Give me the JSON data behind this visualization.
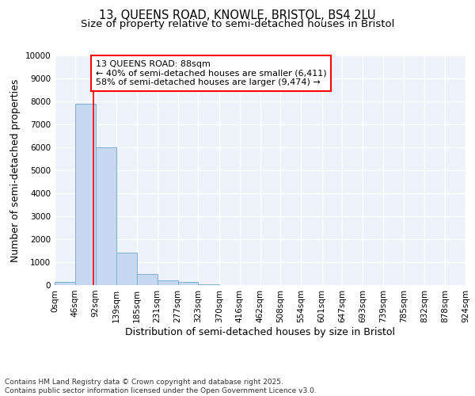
{
  "title_line1": "13, QUEENS ROAD, KNOWLE, BRISTOL, BS4 2LU",
  "title_line2": "Size of property relative to semi-detached houses in Bristol",
  "xlabel": "Distribution of semi-detached houses by size in Bristol",
  "ylabel": "Number of semi-detached properties",
  "bar_values": [
    150,
    7900,
    6000,
    1400,
    500,
    200,
    150,
    50,
    0,
    0,
    0,
    0,
    0,
    0,
    0,
    0,
    0,
    0,
    0,
    0
  ],
  "bin_edges": [
    0,
    46,
    92,
    139,
    185,
    231,
    277,
    323,
    370,
    416,
    462,
    508,
    554,
    601,
    647,
    693,
    739,
    785,
    832,
    878,
    924
  ],
  "bin_labels": [
    "0sqm",
    "46sqm",
    "92sqm",
    "139sqm",
    "185sqm",
    "231sqm",
    "277sqm",
    "323sqm",
    "370sqm",
    "416sqm",
    "462sqm",
    "508sqm",
    "554sqm",
    "601sqm",
    "647sqm",
    "693sqm",
    "739sqm",
    "785sqm",
    "832sqm",
    "878sqm",
    "924sqm"
  ],
  "bar_color": "#c5d8f0",
  "bar_edge_color": "#7bafd4",
  "property_size": 88,
  "property_line_color": "red",
  "annotation_title": "13 QUEENS ROAD: 88sqm",
  "annotation_line2": "← 40% of semi-detached houses are smaller (6,411)",
  "annotation_line3": "58% of semi-detached houses are larger (9,474) →",
  "annotation_box_color": "white",
  "annotation_border_color": "red",
  "ylim": [
    0,
    10000
  ],
  "yticks": [
    0,
    1000,
    2000,
    3000,
    4000,
    5000,
    6000,
    7000,
    8000,
    9000,
    10000
  ],
  "background_color": "#edf2fb",
  "grid_color": "white",
  "footer_text": "Contains HM Land Registry data © Crown copyright and database right 2025.\nContains public sector information licensed under the Open Government Licence v3.0.",
  "title_fontsize": 10.5,
  "subtitle_fontsize": 9.5,
  "axis_label_fontsize": 9,
  "tick_fontsize": 7.5,
  "annotation_fontsize": 8,
  "footer_fontsize": 6.5
}
